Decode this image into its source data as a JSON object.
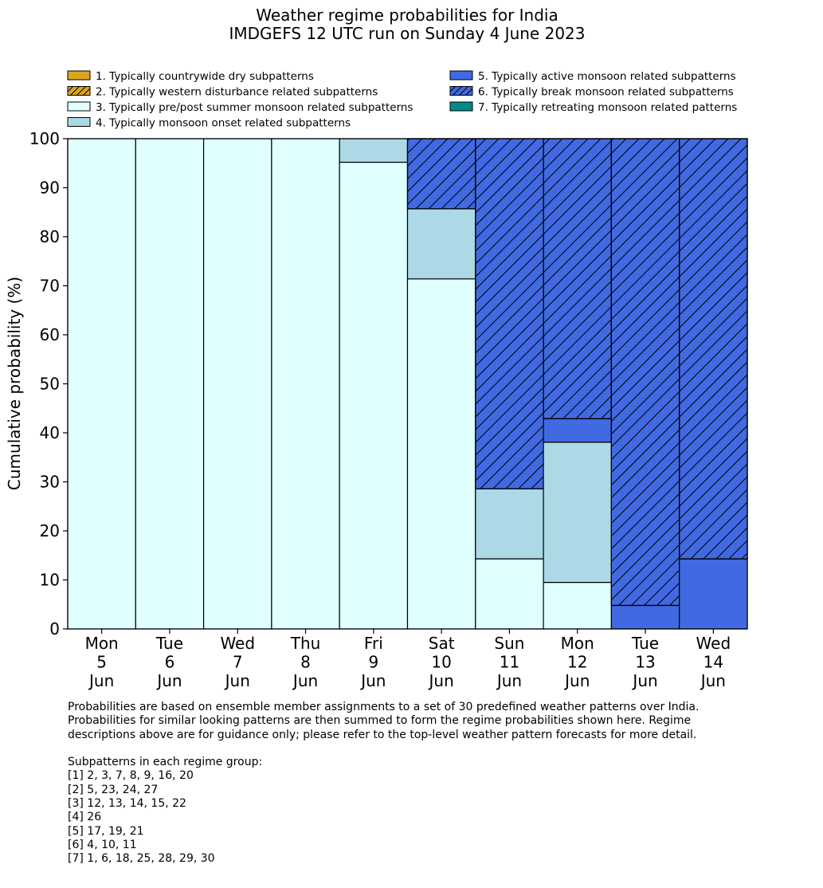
{
  "chart_data": {
    "type": "bar",
    "stacked": true,
    "title": [
      "Weather regime probabilities for India",
      "IMDGEFS 12 UTC run on Sunday 4 June 2023"
    ],
    "ylabel": "Cumulative probability (%)",
    "xlabel": "",
    "ylim": [
      0,
      100
    ],
    "yticks": [
      0,
      10,
      20,
      30,
      40,
      50,
      60,
      70,
      80,
      90,
      100
    ],
    "categories": [
      [
        "Mon",
        "5",
        "Jun"
      ],
      [
        "Tue",
        "6",
        "Jun"
      ],
      [
        "Wed",
        "7",
        "Jun"
      ],
      [
        "Thu",
        "8",
        "Jun"
      ],
      [
        "Fri",
        "9",
        "Jun"
      ],
      [
        "Sat",
        "10",
        "Jun"
      ],
      [
        "Sun",
        "11",
        "Jun"
      ],
      [
        "Mon",
        "12",
        "Jun"
      ],
      [
        "Tue",
        "13",
        "Jun"
      ],
      [
        "Wed",
        "14",
        "Jun"
      ]
    ],
    "series": [
      {
        "name": "1. Typically countrywide dry subpatterns",
        "color": "#DAA520",
        "hatch": false,
        "values": [
          0,
          0,
          0,
          0,
          0,
          0,
          0,
          0,
          0,
          0
        ]
      },
      {
        "name": "2. Typically western disturbance related subpatterns",
        "color": "#DAA520",
        "hatch": true,
        "values": [
          0,
          0,
          0,
          0,
          0,
          0,
          0,
          0,
          0,
          0
        ]
      },
      {
        "name": "3. Typically pre/post summer monsoon related subpatterns",
        "color": "#E0FFFF",
        "hatch": false,
        "values": [
          100,
          100,
          100,
          100,
          95.2,
          71.4,
          14.3,
          9.5,
          0,
          0
        ]
      },
      {
        "name": "4. Typically monsoon onset related subpatterns",
        "color": "#ADD8E6",
        "hatch": false,
        "values": [
          0,
          0,
          0,
          0,
          4.8,
          14.3,
          14.3,
          28.6,
          0,
          0
        ]
      },
      {
        "name": "5. Typically active monsoon related subpatterns",
        "color": "#4169E1",
        "hatch": false,
        "values": [
          0,
          0,
          0,
          0,
          0,
          0,
          0,
          4.8,
          4.8,
          14.3
        ]
      },
      {
        "name": "6. Typically break monsoon related subpatterns",
        "color": "#4169E1",
        "hatch": true,
        "values": [
          0,
          0,
          0,
          0,
          0,
          14.3,
          71.4,
          57.1,
          95.2,
          85.7
        ]
      },
      {
        "name": "7. Typically retreating monsoon related patterns",
        "color": "#008B8B",
        "hatch": false,
        "values": [
          0,
          0,
          0,
          0,
          0,
          0,
          0,
          0,
          0,
          0
        ]
      }
    ],
    "legend_placement": "top"
  },
  "notes": {
    "intro": [
      "Probabilities are based on ensemble member assignments to a set of 30 predefined weather patterns over India.",
      "Probabilities for similar looking patterns are then summed to form the regime probabilities shown here. Regime",
      "descriptions above are for guidance only; please refer to the top-level weather pattern forecasts for more detail."
    ],
    "groups_heading": "Subpatterns in each regime group:",
    "groups": [
      "[1] 2, 3, 7, 8, 9, 16, 20",
      "[2] 5, 23, 24, 27",
      "[3] 12, 13, 14, 15, 22",
      "[4] 26",
      "[5] 17, 19, 21",
      "[6] 4, 10, 11",
      "[7] 1, 6, 18, 25, 28, 29, 30"
    ]
  }
}
